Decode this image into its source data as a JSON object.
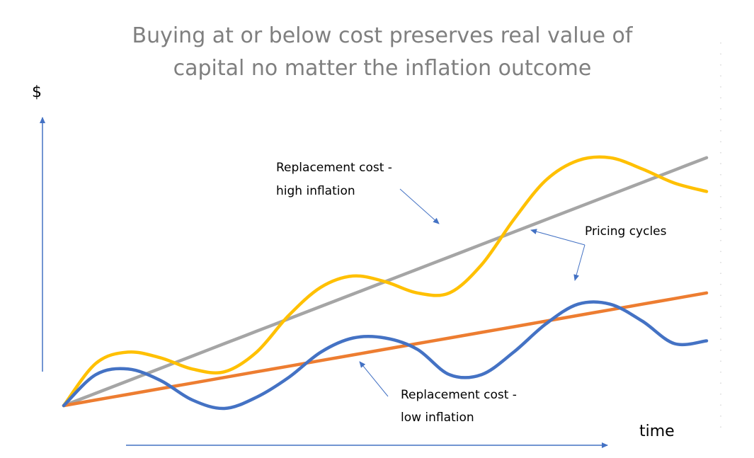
{
  "chart_data": {
    "type": "line",
    "title": [
      "Buying at or below cost preserves real value of",
      "capital no matter the inflation outcome"
    ],
    "xlabel": "time",
    "ylabel": "$",
    "x": [
      0,
      0.5,
      1,
      1.5,
      2,
      2.5,
      3,
      3.5,
      4,
      4.5,
      5,
      5.5,
      6,
      6.5,
      7,
      7.5,
      8,
      8.5,
      9,
      9.5,
      10
    ],
    "xlim": [
      0,
      10
    ],
    "ylim": [
      0,
      100
    ],
    "grid": false,
    "legend": "none",
    "series": [
      {
        "color": "#a5a5a5",
        "values": [
          0,
          4.4,
          8.8,
          13.2,
          17.6,
          22.0,
          26.4,
          30.8,
          35.2,
          39.6,
          44.0,
          48.4,
          52.8,
          57.2,
          61.6,
          66.0,
          70.4,
          74.8,
          79.2,
          83.6,
          88.0
        ]
      },
      {
        "color": "#ed7d31",
        "values": [
          0,
          2.0,
          4.0,
          6.0,
          8.0,
          10.0,
          12.0,
          14.0,
          16.0,
          18.0,
          20.0,
          22.0,
          24.0,
          26.0,
          28.0,
          30.0,
          32.0,
          34.0,
          36.0,
          38.0,
          40.0
        ]
      },
      {
        "color": "#ffc000",
        "values": [
          0,
          15,
          19,
          17,
          13,
          12,
          19,
          32,
          42,
          46,
          44,
          40,
          40,
          50,
          66,
          80,
          87,
          88,
          84,
          79,
          76
        ]
      },
      {
        "color": "#4472c4",
        "values": [
          0,
          11,
          13,
          9,
          2,
          -1,
          3,
          10,
          19,
          24,
          24,
          20,
          11,
          11,
          19,
          29,
          36,
          36,
          30,
          22,
          23
        ]
      }
    ],
    "annotations": [
      {
        "text": [
          "Replacement cost -",
          "high inflation"
        ]
      },
      {
        "text": [
          "Pricing cycles"
        ]
      },
      {
        "text": [
          "Replacement cost -",
          "low inflation"
        ]
      }
    ]
  }
}
